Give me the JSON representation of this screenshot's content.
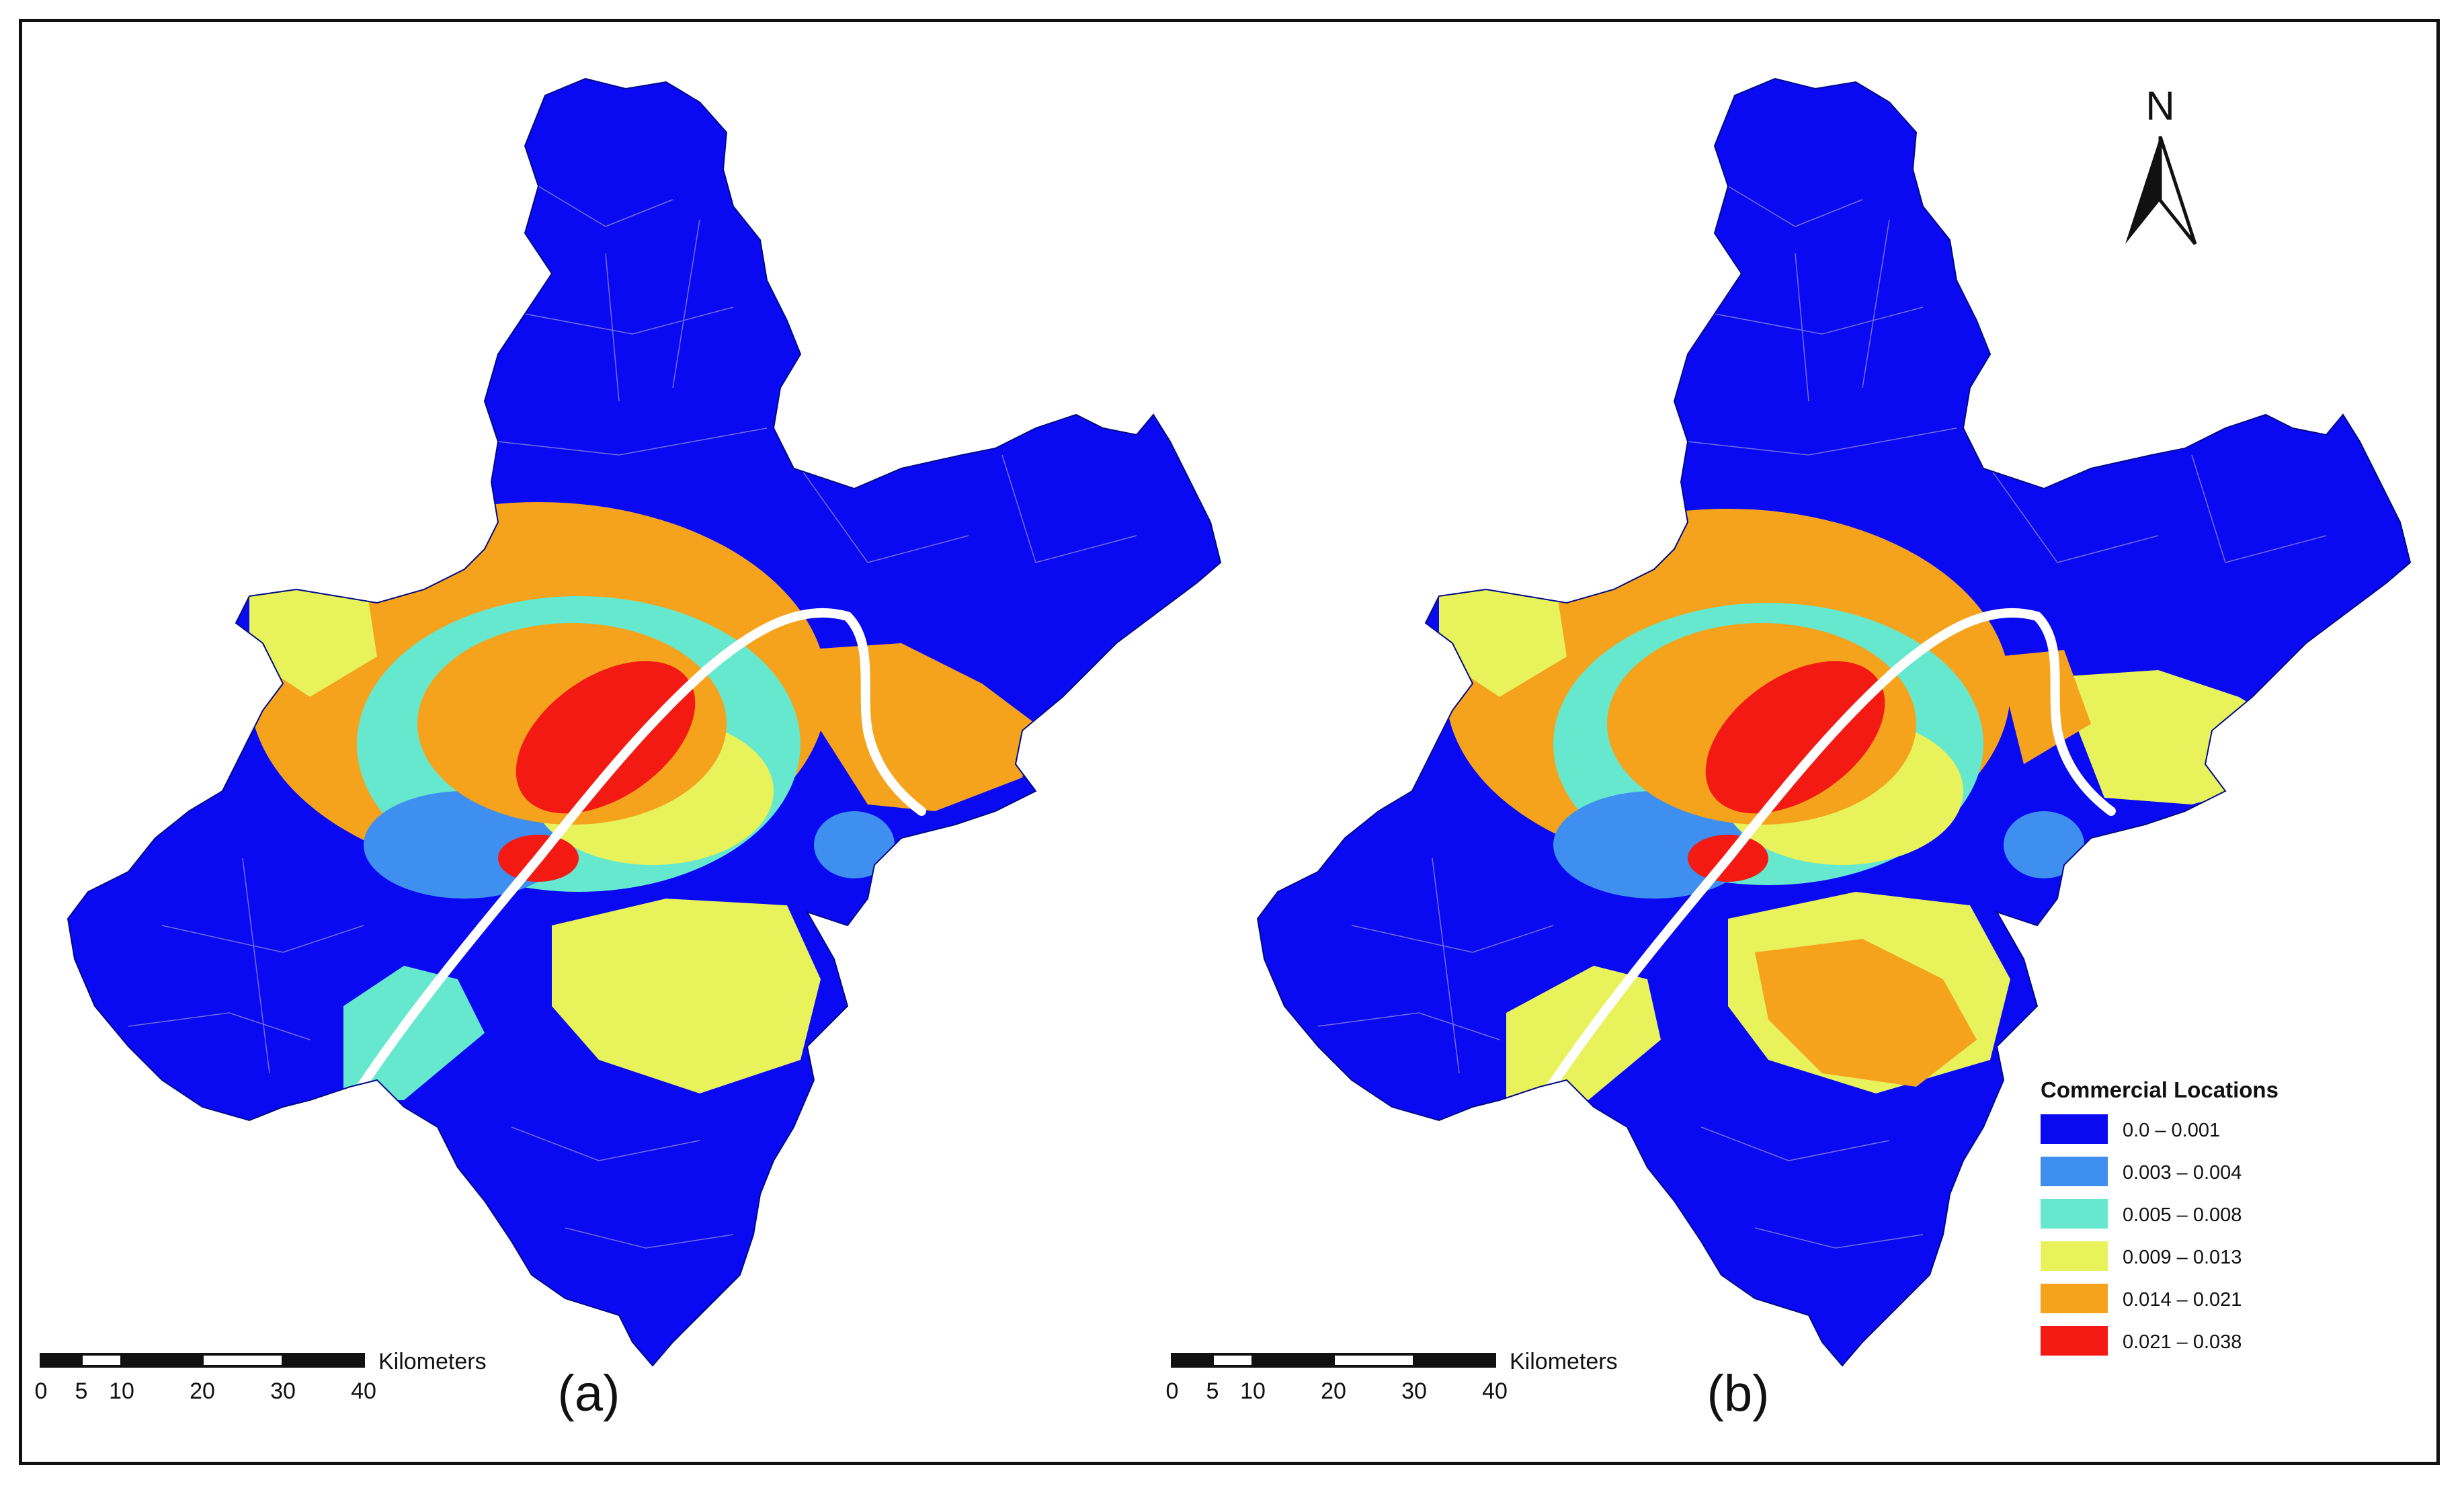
{
  "panels": [
    {
      "id": "a",
      "label": "(a)"
    },
    {
      "id": "b",
      "label": "(b)"
    }
  ],
  "north_arrow": {
    "label": "N"
  },
  "scale_bar": {
    "unit_label": "Kilometers",
    "ticks": [
      "0",
      "5",
      "10",
      "20",
      "30",
      "40"
    ]
  },
  "legend": {
    "title": "Commercial Locations",
    "classes": [
      {
        "label": "0.0 – 0.001",
        "color": "#0a0af2"
      },
      {
        "label": "0.003 – 0.004",
        "color": "#3e8ff0"
      },
      {
        "label": "0.005 – 0.008",
        "color": "#66e8cf"
      },
      {
        "label": "0.009 – 0.013",
        "color": "#e8f25a"
      },
      {
        "label": "0.014 – 0.021",
        "color": "#f5a21d"
      },
      {
        "label": "0.021 – 0.038",
        "color": "#f21a12"
      }
    ]
  },
  "map_colors": {
    "river": "#ffffff",
    "boundary": "#7a7ae6"
  }
}
